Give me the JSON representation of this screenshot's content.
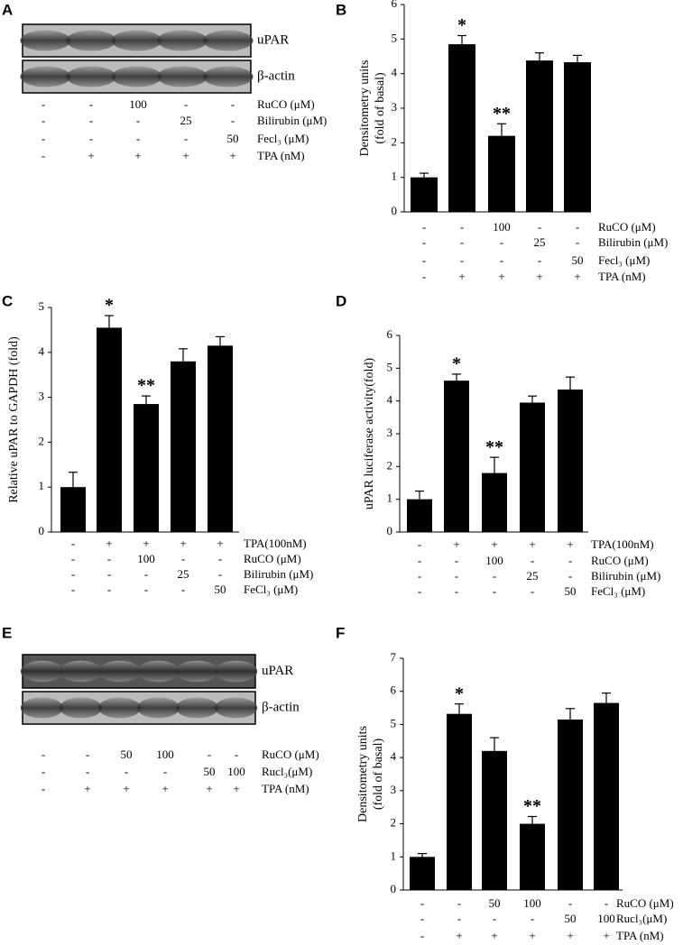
{
  "blots": [
    {
      "panel": "A",
      "bands": [
        "uPAR",
        "β-actin"
      ],
      "conditions": [
        {
          "label": "RuCO (μM)",
          "cells": [
            "-",
            "-",
            "100",
            "-",
            "-"
          ]
        },
        {
          "label": "Bilirubin (μM)",
          "cells": [
            "-",
            "-",
            "-",
            "25",
            "-"
          ]
        },
        {
          "label": "Fecl₃ (μM)",
          "cells": [
            "-",
            "-",
            "-",
            "-",
            "50"
          ]
        },
        {
          "label": "TPA (nM)",
          "cells": [
            "-",
            "+",
            "+",
            "+",
            "+"
          ]
        }
      ]
    },
    {
      "panel": "E",
      "bands": [
        "uPAR",
        "β-actin"
      ],
      "conditions": [
        {
          "label": "RuCO (μM)",
          "cells": [
            "-",
            "-",
            "50",
            "100",
            "-",
            "-"
          ]
        },
        {
          "label": "Rucl₃(μM)",
          "cells": [
            "-",
            "-",
            "-",
            "-",
            "50",
            "100"
          ]
        },
        {
          "label": "TPA (nM)",
          "cells": [
            "-",
            "+",
            "+",
            "+",
            "+",
            "+"
          ]
        }
      ]
    }
  ],
  "chart_data": [
    {
      "type": "bar",
      "panel": "B",
      "ylabel": [
        "Densitometry units",
        "(fold of basal)"
      ],
      "color": "#000000",
      "values": [
        1.0,
        4.85,
        2.2,
        4.38,
        4.33
      ],
      "errors": [
        0.12,
        0.25,
        0.35,
        0.22,
        0.2
      ],
      "value_annotations": [
        null,
        "*",
        "**",
        null,
        null
      ],
      "ylim": [
        0,
        6
      ],
      "yticks": [
        0,
        1,
        2,
        3,
        4,
        5,
        6
      ],
      "conditions": [
        {
          "label": "RuCO (μM)",
          "cells": [
            "-",
            "-",
            "100",
            "-",
            "-"
          ]
        },
        {
          "label": "Bilirubin (μM)",
          "cells": [
            "-",
            "-",
            "-",
            "25",
            "-"
          ]
        },
        {
          "label": "Fecl₃ (μM)",
          "cells": [
            "-",
            "-",
            "-",
            "-",
            "50"
          ]
        },
        {
          "label": "TPA (nM)",
          "cells": [
            "-",
            "+",
            "+",
            "+",
            "+"
          ]
        }
      ]
    },
    {
      "type": "bar",
      "panel": "C",
      "ylabel": [
        "Relative uPAR to GAPDH (fold)"
      ],
      "color": "#000000",
      "values": [
        1.0,
        4.55,
        2.85,
        3.8,
        4.15
      ],
      "errors": [
        0.33,
        0.27,
        0.18,
        0.28,
        0.2
      ],
      "value_annotations": [
        null,
        "*",
        "**",
        null,
        null
      ],
      "ylim": [
        0,
        5
      ],
      "yticks": [
        0,
        1,
        2,
        3,
        4,
        5
      ],
      "conditions": [
        {
          "label": "TPA(100nM)",
          "cells": [
            "-",
            "+",
            "+",
            "+",
            "+"
          ]
        },
        {
          "label": "RuCO (μM)",
          "cells": [
            "-",
            "-",
            "100",
            "-",
            "-"
          ]
        },
        {
          "label": "Bilirubin (μM)",
          "cells": [
            "-",
            "-",
            "-",
            "25",
            "-"
          ]
        },
        {
          "label": "FeCl₃ (μM)",
          "cells": [
            "-",
            "-",
            "-",
            "-",
            "50"
          ]
        }
      ]
    },
    {
      "type": "bar",
      "panel": "D",
      "ylabel": [
        "uPAR luciferase activity(fold)"
      ],
      "color": "#000000",
      "values": [
        1.0,
        4.62,
        1.8,
        3.95,
        4.35
      ],
      "errors": [
        0.25,
        0.2,
        0.48,
        0.2,
        0.38
      ],
      "value_annotations": [
        null,
        "*",
        "**",
        null,
        null
      ],
      "ylim": [
        0,
        6
      ],
      "yticks": [
        0,
        1,
        2,
        3,
        4,
        5,
        6
      ],
      "conditions": [
        {
          "label": "TPA(100nM)",
          "cells": [
            "-",
            "+",
            "+",
            "+",
            "+"
          ]
        },
        {
          "label": "RuCO (μM)",
          "cells": [
            "-",
            "-",
            "100",
            "-",
            "-"
          ]
        },
        {
          "label": "Bilirubin (μM)",
          "cells": [
            "-",
            "-",
            "-",
            "25",
            "-"
          ]
        },
        {
          "label": "FeCl₃ (μM)",
          "cells": [
            "-",
            "-",
            "-",
            "-",
            "50"
          ]
        }
      ]
    },
    {
      "type": "bar",
      "panel": "F",
      "ylabel": [
        "Densitometry units",
        "(fold of basal)"
      ],
      "color": "#000000",
      "values": [
        1.0,
        5.32,
        4.2,
        2.0,
        5.15,
        5.65
      ],
      "errors": [
        0.1,
        0.3,
        0.4,
        0.22,
        0.33,
        0.3
      ],
      "value_annotations": [
        null,
        "*",
        null,
        "**",
        null,
        null
      ],
      "ylim": [
        0,
        7
      ],
      "yticks": [
        0,
        1,
        2,
        3,
        4,
        5,
        6,
        7
      ],
      "conditions": [
        {
          "label": "RuCO (μM)",
          "cells": [
            "-",
            "-",
            "50",
            "100",
            "-",
            "-"
          ]
        },
        {
          "label": "Rucl₃(μM)",
          "cells": [
            "-",
            "-",
            "-",
            "-",
            "50",
            "100"
          ]
        },
        {
          "label": "TPA (nM)",
          "cells": [
            "-",
            "+",
            "+",
            "+",
            "+",
            "+"
          ]
        }
      ]
    }
  ]
}
